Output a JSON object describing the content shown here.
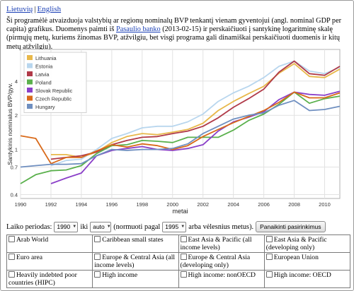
{
  "languages": [
    {
      "label": "Lietuvių"
    },
    {
      "label": "English"
    }
  ],
  "language_separator": "|",
  "intro": {
    "part1": "Ši programėlė atvaizduoja valstybių ar regionų nominalų BVP tenkantį vienam gyventojui (angl. nominal GDP per capita) grafikus. Duomenys paimti iš ",
    "link": "Pasaulio banko",
    "part2": " (2013-02-15) ir perskaičiuoti į santykinę logaritminę skalę (pirmųjų metų, kuriems žinomas BVP, atžvilgiu, bet visgi programa gali dinamiškai perskaičiuoti duomenis ir kitų metų atžvilgiu)."
  },
  "colors": {
    "Lithuania": "#e8b84a",
    "Estonia": "#b8d6ee",
    "Latvia": "#b03a48",
    "Poland": "#5ab04c",
    "Slovak Republic": "#8a3fc8",
    "Czech Republic": "#d96a1a",
    "Hungary": "#6f8fc0"
  },
  "chart_data": {
    "type": "line",
    "xlabel": "metai",
    "ylabel": "Santykinis nominalus BVP/gyv.",
    "x_ticks": [
      "1990",
      "1992",
      "1994",
      "1996",
      "1998",
      "2000",
      "2002",
      "2004",
      "2006",
      "2008",
      "2010"
    ],
    "y_ticks": [
      "0.4",
      "0.7",
      "1",
      "2",
      "4"
    ],
    "y_scale": "log",
    "xlim": [
      1990,
      2011
    ],
    "ylim": [
      0.37,
      7.6
    ],
    "grid": true,
    "legend_position": "top-left",
    "x": [
      1990,
      1991,
      1992,
      1993,
      1994,
      1995,
      1996,
      1997,
      1998,
      1999,
      2000,
      2001,
      2002,
      2003,
      2004,
      2005,
      2006,
      2007,
      2008,
      2009,
      2010,
      2011
    ],
    "series": [
      {
        "name": "Lithuania",
        "values": [
          null,
          null,
          0.9,
          0.9,
          0.85,
          0.95,
          1.15,
          1.3,
          1.38,
          1.35,
          1.42,
          1.5,
          1.7,
          2.2,
          2.65,
          3.1,
          3.6,
          4.7,
          5.7,
          4.4,
          4.3,
          5.1
        ]
      },
      {
        "name": "Estonia",
        "values": [
          null,
          null,
          0.72,
          0.8,
          0.82,
          1.0,
          1.25,
          1.38,
          1.55,
          1.6,
          1.6,
          1.75,
          2.05,
          2.65,
          3.15,
          3.6,
          4.3,
          5.4,
          6.0,
          4.9,
          4.65,
          5.3
        ]
      },
      {
        "name": "Latvia",
        "values": [
          null,
          null,
          0.82,
          0.85,
          0.88,
          0.95,
          1.1,
          1.2,
          1.28,
          1.3,
          1.38,
          1.45,
          1.6,
          1.9,
          2.35,
          2.8,
          3.4,
          4.8,
          6.0,
          4.65,
          4.5,
          5.4
        ]
      },
      {
        "name": "Poland",
        "values": [
          0.5,
          0.6,
          0.65,
          0.66,
          0.72,
          0.92,
          1.08,
          1.1,
          1.2,
          1.18,
          1.15,
          1.28,
          1.28,
          1.28,
          1.48,
          1.8,
          2.05,
          2.5,
          3.2,
          2.55,
          2.8,
          2.95
        ]
      },
      {
        "name": "Slovak Republic",
        "values": [
          null,
          null,
          0.5,
          0.56,
          0.62,
          0.88,
          0.98,
          1.02,
          1.06,
          1.0,
          0.98,
          1.02,
          1.1,
          1.45,
          1.75,
          1.92,
          2.15,
          2.75,
          3.2,
          3.05,
          3.0,
          3.25
        ]
      },
      {
        "name": "Czech Republic",
        "values": [
          1.32,
          1.25,
          0.75,
          0.85,
          0.85,
          0.97,
          1.1,
          1.05,
          1.12,
          1.08,
          1.0,
          1.08,
          1.3,
          1.5,
          1.72,
          1.95,
          2.2,
          2.6,
          3.2,
          2.85,
          2.85,
          3.15
        ]
      },
      {
        "name": "Hungary",
        "values": [
          0.7,
          0.72,
          0.74,
          0.74,
          0.75,
          0.88,
          1.0,
          0.98,
          1.0,
          1.0,
          1.02,
          1.12,
          1.38,
          1.6,
          1.85,
          2.0,
          2.1,
          2.45,
          2.7,
          2.2,
          2.25,
          2.4
        ]
      }
    ]
  },
  "controls": {
    "period_label": "Laiko periodas:",
    "from_value": "1990",
    "to_label": "iki",
    "to_value": "auto",
    "norm_label": "(normuoti pagal",
    "norm_value": "1995",
    "norm_suffix": "arba vėlesnius metus).",
    "apply_button": "Panaikinti pasirinkimus"
  },
  "regions": [
    [
      "Arab World",
      "Caribbean small states",
      "East Asia & Pacific (all income levels)",
      "East Asia & Pacific (developing only)"
    ],
    [
      "Euro area",
      "Europe & Central Asia (all income levels)",
      "Europe & Central Asia (developing only)",
      "European Union"
    ],
    [
      "Heavily indebted poor countries (HIPC)",
      "High income",
      "High income: nonOECD",
      "High income: OECD"
    ]
  ]
}
